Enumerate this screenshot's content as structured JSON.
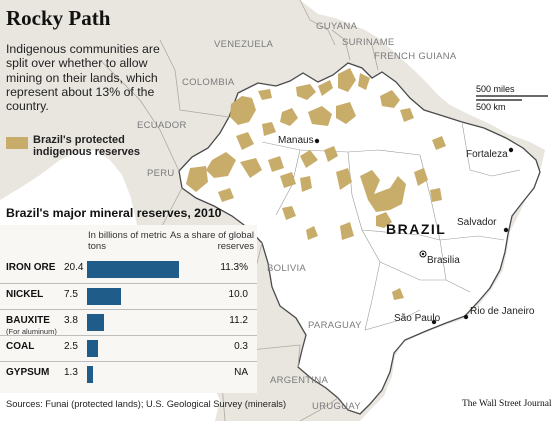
{
  "title": "Rocky Path",
  "subtitle": "Indigenous communities are split over whether to allow mining on their lands, which represent about 13% of the country.",
  "legend": {
    "label": "Brazil's protected indigenous reserves",
    "color": "#c8ad6a"
  },
  "countries": [
    "GUYANA",
    "VENEZUELA",
    "SURINAME",
    "FRENCH GUIANA",
    "COLOMBIA",
    "ECUADOR",
    "PERU",
    "BOLIVIA",
    "PARAGUAY",
    "ARGENTINA",
    "URUGUAY"
  ],
  "country_label": "BRAZIL",
  "cities": [
    "Manaus",
    "Fortaleza",
    "Salvador",
    "Brasilia",
    "São Paulo",
    "Rio de Janeiro"
  ],
  "scale": {
    "miles": "500 miles",
    "km": "500 km"
  },
  "minerals": {
    "title": "Brazil's major mineral reserves, 2010",
    "col_amount": "In billions of metric tons",
    "col_share": "As a share of global reserves",
    "rows": [
      {
        "name": "IRON ORE",
        "note": "",
        "value": 20.4,
        "value_label": "20.4",
        "share": "11.3%"
      },
      {
        "name": "NICKEL",
        "note": "",
        "value": 7.5,
        "value_label": "7.5",
        "share": "10.0"
      },
      {
        "name": "BAUXITE",
        "note": "(For aluminum)",
        "value": 3.8,
        "value_label": "3.8",
        "share": "11.2"
      },
      {
        "name": "COAL",
        "note": "",
        "value": 2.5,
        "value_label": "2.5",
        "share": "0.3"
      },
      {
        "name": "GYPSUM",
        "note": "",
        "value": 1.3,
        "value_label": "1.3",
        "share": "NA"
      }
    ],
    "bar_color": "#1f5c8a"
  },
  "sources": "Sources: Funai (protected lands); U.S. Geological Survey (minerals)",
  "credit": "The Wall Street Journal"
}
